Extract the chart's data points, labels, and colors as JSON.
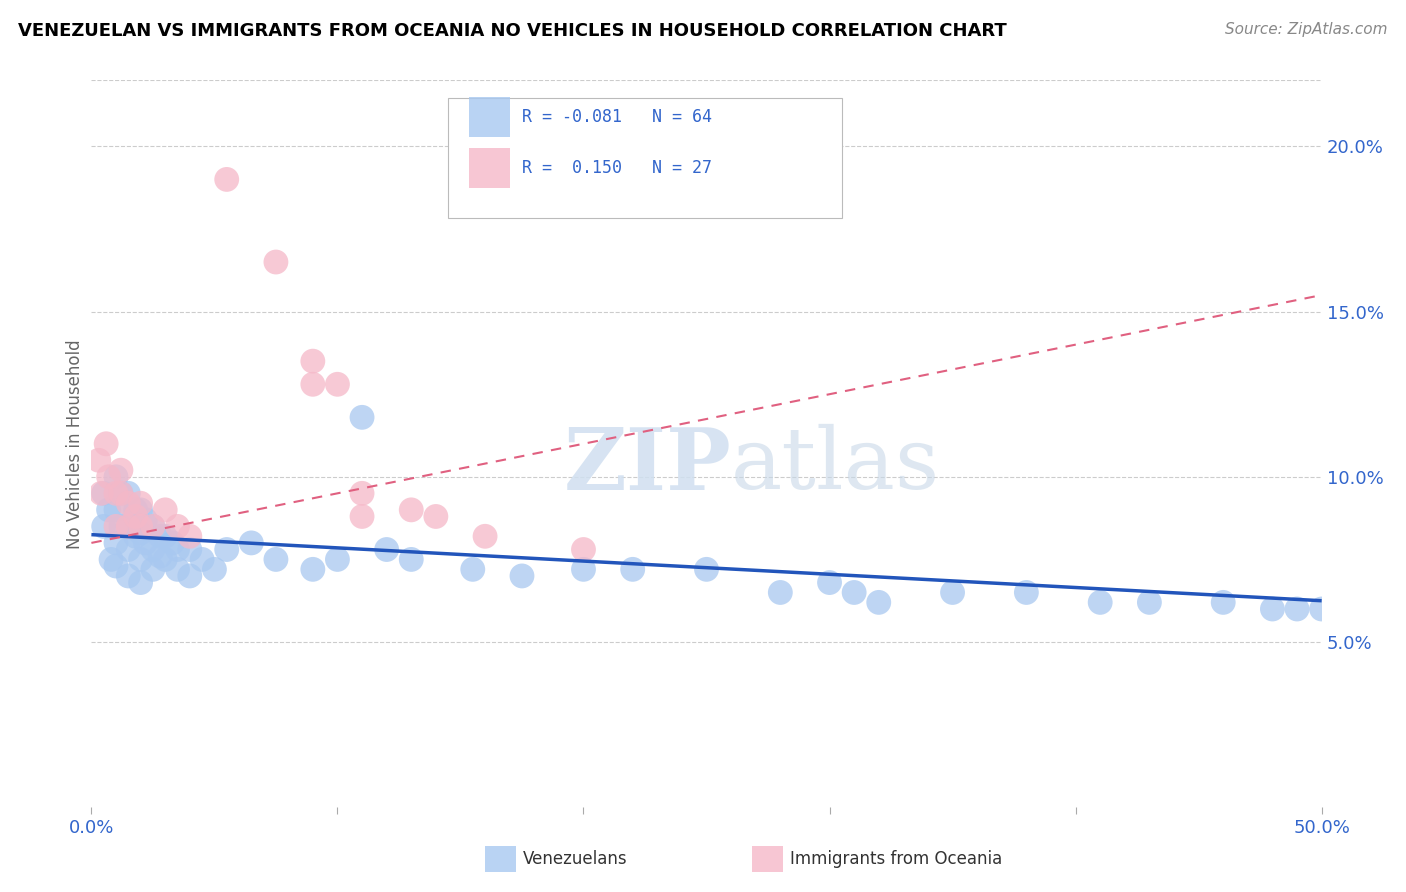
{
  "title": "VENEZUELAN VS IMMIGRANTS FROM OCEANIA NO VEHICLES IN HOUSEHOLD CORRELATION CHART",
  "source": "Source: ZipAtlas.com",
  "ylabel": "No Vehicles in Household",
  "xlim": [
    0.0,
    0.5
  ],
  "ylim": [
    0.0,
    0.22
  ],
  "xticks": [
    0.0,
    0.1,
    0.2,
    0.3,
    0.4,
    0.5
  ],
  "xticklabels": [
    "0.0%",
    "",
    "",
    "",
    "",
    "50.0%"
  ],
  "yticks_right": [
    0.05,
    0.1,
    0.15,
    0.2
  ],
  "yticklabels_right": [
    "5.0%",
    "10.0%",
    "15.0%",
    "20.0%"
  ],
  "grid_color": "#cccccc",
  "watermark_zip": "ZIP",
  "watermark_atlas": "atlas",
  "blue_color": "#a8c8f0",
  "pink_color": "#f5b8c8",
  "blue_line_color": "#2255bb",
  "pink_line_color": "#e06080",
  "blue_scatter": [
    [
      0.005,
      0.095
    ],
    [
      0.005,
      0.085
    ],
    [
      0.007,
      0.09
    ],
    [
      0.008,
      0.075
    ],
    [
      0.01,
      0.1
    ],
    [
      0.01,
      0.09
    ],
    [
      0.01,
      0.08
    ],
    [
      0.01,
      0.073
    ],
    [
      0.012,
      0.095
    ],
    [
      0.012,
      0.085
    ],
    [
      0.015,
      0.095
    ],
    [
      0.015,
      0.085
    ],
    [
      0.015,
      0.078
    ],
    [
      0.015,
      0.07
    ],
    [
      0.018,
      0.09
    ],
    [
      0.018,
      0.082
    ],
    [
      0.02,
      0.09
    ],
    [
      0.02,
      0.083
    ],
    [
      0.02,
      0.075
    ],
    [
      0.02,
      0.068
    ],
    [
      0.022,
      0.087
    ],
    [
      0.022,
      0.08
    ],
    [
      0.025,
      0.085
    ],
    [
      0.025,
      0.078
    ],
    [
      0.025,
      0.072
    ],
    [
      0.028,
      0.082
    ],
    [
      0.028,
      0.076
    ],
    [
      0.03,
      0.082
    ],
    [
      0.03,
      0.075
    ],
    [
      0.033,
      0.08
    ],
    [
      0.035,
      0.078
    ],
    [
      0.035,
      0.072
    ],
    [
      0.04,
      0.078
    ],
    [
      0.04,
      0.07
    ],
    [
      0.045,
      0.075
    ],
    [
      0.05,
      0.072
    ],
    [
      0.055,
      0.078
    ],
    [
      0.065,
      0.08
    ],
    [
      0.075,
      0.075
    ],
    [
      0.09,
      0.072
    ],
    [
      0.1,
      0.075
    ],
    [
      0.11,
      0.118
    ],
    [
      0.12,
      0.078
    ],
    [
      0.13,
      0.075
    ],
    [
      0.155,
      0.072
    ],
    [
      0.175,
      0.07
    ],
    [
      0.2,
      0.072
    ],
    [
      0.22,
      0.072
    ],
    [
      0.25,
      0.072
    ],
    [
      0.28,
      0.065
    ],
    [
      0.3,
      0.068
    ],
    [
      0.31,
      0.065
    ],
    [
      0.32,
      0.062
    ],
    [
      0.35,
      0.065
    ],
    [
      0.38,
      0.065
    ],
    [
      0.41,
      0.062
    ],
    [
      0.43,
      0.062
    ],
    [
      0.46,
      0.062
    ],
    [
      0.48,
      0.06
    ],
    [
      0.49,
      0.06
    ],
    [
      0.5,
      0.06
    ]
  ],
  "pink_scatter": [
    [
      0.003,
      0.105
    ],
    [
      0.004,
      0.095
    ],
    [
      0.006,
      0.11
    ],
    [
      0.007,
      0.1
    ],
    [
      0.01,
      0.095
    ],
    [
      0.01,
      0.085
    ],
    [
      0.012,
      0.102
    ],
    [
      0.012,
      0.095
    ],
    [
      0.015,
      0.092
    ],
    [
      0.015,
      0.085
    ],
    [
      0.018,
      0.088
    ],
    [
      0.02,
      0.092
    ],
    [
      0.02,
      0.085
    ],
    [
      0.025,
      0.085
    ],
    [
      0.03,
      0.09
    ],
    [
      0.035,
      0.085
    ],
    [
      0.04,
      0.082
    ],
    [
      0.055,
      0.19
    ],
    [
      0.075,
      0.165
    ],
    [
      0.09,
      0.135
    ],
    [
      0.09,
      0.128
    ],
    [
      0.1,
      0.128
    ],
    [
      0.11,
      0.095
    ],
    [
      0.11,
      0.088
    ],
    [
      0.13,
      0.09
    ],
    [
      0.14,
      0.088
    ],
    [
      0.16,
      0.082
    ],
    [
      0.2,
      0.078
    ]
  ],
  "blue_trend": [
    -0.081,
    [
      0.0,
      0.5
    ],
    [
      0.0825,
      0.0625
    ]
  ],
  "pink_trend": [
    0.15,
    [
      0.0,
      0.5
    ],
    [
      0.08,
      0.155
    ]
  ]
}
